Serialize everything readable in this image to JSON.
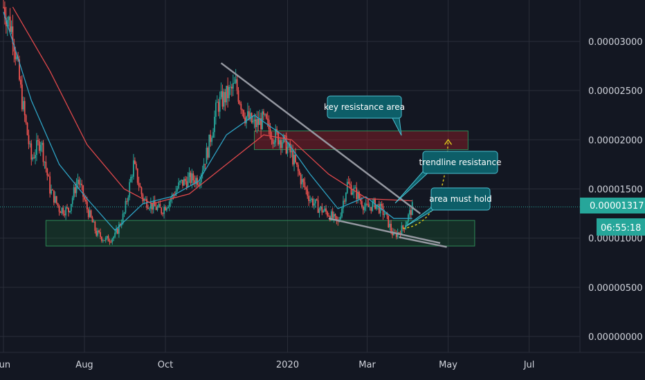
{
  "colors": {
    "background": "#131722",
    "grid": "#2a2e39",
    "axis_text": "#d1d4dc",
    "candle_up": "#26a69a",
    "candle_down": "#ef5350",
    "ma_fast": "#2ea3c4",
    "ma_slow": "#e0484b",
    "trendline": "#9598a1",
    "support_zone_fill": "rgba(30,140,60,0.20)",
    "support_zone_stroke": "#2e8b57",
    "resistance_zone_fill": "rgba(150,30,40,0.45)",
    "resistance_zone_stroke": "#2e8b57",
    "callout_fill": "#0d5e68",
    "callout_stroke": "#4cc0d2",
    "price_line": "#26a69a",
    "price_badge": "#26a69a",
    "projection_arrow": "#d7c21b"
  },
  "chart_data": {
    "type": "candlestick",
    "x_ticks": [
      "Jun",
      "Aug",
      "Oct",
      "2020",
      "Mar",
      "May",
      "Jul"
    ],
    "y_ticks": [
      "0.00003000",
      "0.00002500",
      "0.00002000",
      "0.00001500",
      "0.00001000",
      "0.00000500",
      "0.00000000"
    ],
    "y_range": [
      0,
      3.35e-05
    ],
    "x_range": [
      "2019-06-01",
      "2020-08-31"
    ],
    "grid": true,
    "current_price": "0.00001317",
    "countdown": "06:55:18",
    "price_path": [
      [
        "2019-06-01",
        3.35e-05
      ],
      [
        "2019-06-08",
        3.1e-05
      ],
      [
        "2019-06-15",
        2.4e-05
      ],
      [
        "2019-06-22",
        1.8e-05
      ],
      [
        "2019-06-29",
        2e-05
      ],
      [
        "2019-07-06",
        1.5e-05
      ],
      [
        "2019-07-13",
        1.3e-05
      ],
      [
        "2019-07-20",
        1.28e-05
      ],
      [
        "2019-07-27",
        1.6e-05
      ],
      [
        "2019-08-03",
        1.3e-05
      ],
      [
        "2019-08-10",
        1.05e-05
      ],
      [
        "2019-08-17",
        9.8e-06
      ],
      [
        "2019-08-24",
        1.02e-05
      ],
      [
        "2019-08-31",
        1.25e-05
      ],
      [
        "2019-09-07",
        1.75e-05
      ],
      [
        "2019-09-14",
        1.4e-05
      ],
      [
        "2019-09-21",
        1.33e-05
      ],
      [
        "2019-09-28",
        1.28e-05
      ],
      [
        "2019-10-05",
        1.4e-05
      ],
      [
        "2019-10-12",
        1.55e-05
      ],
      [
        "2019-10-19",
        1.6e-05
      ],
      [
        "2019-10-26",
        1.6e-05
      ],
      [
        "2019-11-02",
        1.9e-05
      ],
      [
        "2019-11-09",
        2.35e-05
      ],
      [
        "2019-11-16",
        2.45e-05
      ],
      [
        "2019-11-23",
        2.55e-05
      ],
      [
        "2019-11-30",
        2.25e-05
      ],
      [
        "2019-12-07",
        2.15e-05
      ],
      [
        "2019-12-14",
        2.2e-05
      ],
      [
        "2019-12-21",
        2.05e-05
      ],
      [
        "2019-12-28",
        2e-05
      ],
      [
        "2020-01-04",
        1.85e-05
      ],
      [
        "2020-01-11",
        1.6e-05
      ],
      [
        "2020-01-18",
        1.4e-05
      ],
      [
        "2020-01-25",
        1.3e-05
      ],
      [
        "2020-02-01",
        1.25e-05
      ],
      [
        "2020-02-08",
        1.15e-05
      ],
      [
        "2020-02-15",
        1.55e-05
      ],
      [
        "2020-02-22",
        1.45e-05
      ],
      [
        "2020-02-29",
        1.3e-05
      ],
      [
        "2020-03-07",
        1.35e-05
      ],
      [
        "2020-03-14",
        1.25e-05
      ],
      [
        "2020-03-21",
        1.02e-05
      ],
      [
        "2020-03-28",
        1.1e-05
      ],
      [
        "2020-04-04",
        1.31e-05
      ]
    ],
    "ma_fast": [
      [
        "2019-06-01",
        3.3e-05
      ],
      [
        "2019-06-22",
        2.4e-05
      ],
      [
        "2019-07-13",
        1.75e-05
      ],
      [
        "2019-08-03",
        1.4e-05
      ],
      [
        "2019-08-24",
        1.08e-05
      ],
      [
        "2019-09-14",
        1.35e-05
      ],
      [
        "2019-10-05",
        1.42e-05
      ],
      [
        "2019-10-26",
        1.58e-05
      ],
      [
        "2019-11-16",
        2.05e-05
      ],
      [
        "2019-12-07",
        2.25e-05
      ],
      [
        "2019-12-28",
        2.05e-05
      ],
      [
        "2020-01-18",
        1.65e-05
      ],
      [
        "2020-02-08",
        1.3e-05
      ],
      [
        "2020-02-29",
        1.42e-05
      ],
      [
        "2020-03-21",
        1.2e-05
      ],
      [
        "2020-04-04",
        1.2e-05
      ]
    ],
    "ma_slow": [
      [
        "2019-06-08",
        3.35e-05
      ],
      [
        "2019-07-06",
        2.7e-05
      ],
      [
        "2019-08-03",
        1.95e-05
      ],
      [
        "2019-08-31",
        1.5e-05
      ],
      [
        "2019-09-21",
        1.35e-05
      ],
      [
        "2019-10-19",
        1.45e-05
      ],
      [
        "2019-11-16",
        1.75e-05
      ],
      [
        "2019-12-14",
        2.05e-05
      ],
      [
        "2020-01-04",
        2e-05
      ],
      [
        "2020-02-01",
        1.65e-05
      ],
      [
        "2020-03-01",
        1.4e-05
      ],
      [
        "2020-04-04",
        1.38e-05
      ]
    ],
    "trendlines": [
      {
        "from": [
          "2019-11-12",
          2.78e-05
        ],
        "to": [
          "2020-04-10",
          1.25e-05
        ]
      },
      {
        "from": [
          "2020-02-01",
          1.2e-05
        ],
        "to": [
          "2020-04-25",
          9.5e-06
        ]
      },
      {
        "from": [
          "2020-03-25",
          1.01e-05
        ],
        "to": [
          "2020-04-30",
          9.1e-06
        ]
      }
    ],
    "zones": [
      {
        "from": "2019-07-03",
        "to": "2020-05-21",
        "low": 9.2e-06,
        "high": 1.18e-05
      },
      {
        "from": "2019-12-07",
        "to": "2020-05-16",
        "low": 1.9e-05,
        "high": 2.09e-05
      }
    ],
    "projection": {
      "from": [
        "2020-03-28",
        1.1e-05
      ],
      "to": [
        "2020-05-01",
        2e-05
      ]
    },
    "annotations": [
      {
        "text": "key resistance area",
        "anchor": [
          "2020-04-28",
          2.05e-05
        ]
      },
      {
        "text": "trendline resistance",
        "anchor": [
          "2020-04-04",
          1.45e-05
        ]
      },
      {
        "text": "area must hold",
        "anchor": [
          "2020-04-10",
          1.1e-05
        ]
      }
    ]
  }
}
